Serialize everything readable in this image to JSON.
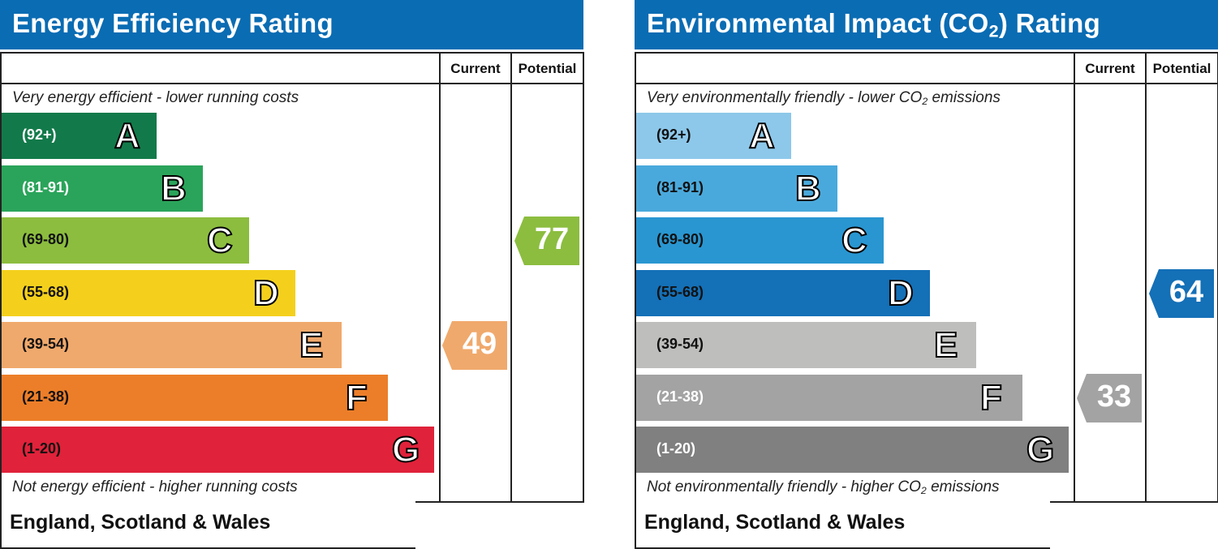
{
  "chart_data": [
    {
      "type": "bar",
      "id": "energy",
      "title": "Energy Efficiency Rating",
      "columns": [
        "Current",
        "Potential"
      ],
      "top_note": "Very energy efficient - lower running costs",
      "bottom_note": "Not energy efficient - higher running costs",
      "footer": "England, Scotland & Wales",
      "bands": [
        {
          "letter": "A",
          "range": "(92+)",
          "color": "#127a4a",
          "text_color": "#ffffff"
        },
        {
          "letter": "B",
          "range": "(81-91)",
          "color": "#2aa45a",
          "text_color": "#ffffff"
        },
        {
          "letter": "C",
          "range": "(69-80)",
          "color": "#8cbd3f",
          "text_color": "#111111"
        },
        {
          "letter": "D",
          "range": "(55-68)",
          "color": "#f4d01d",
          "text_color": "#111111"
        },
        {
          "letter": "E",
          "range": "(39-54)",
          "color": "#f0a96c",
          "text_color": "#111111"
        },
        {
          "letter": "F",
          "range": "(21-38)",
          "color": "#ec7e29",
          "text_color": "#111111"
        },
        {
          "letter": "G",
          "range": "(1-20)",
          "color": "#e0223a",
          "text_color": "#111111"
        }
      ],
      "ratings": {
        "current": {
          "value": 49,
          "band": "E",
          "color": "#f0a96c"
        },
        "potential": {
          "value": 77,
          "band": "C",
          "color": "#8cbd3f"
        }
      }
    },
    {
      "type": "bar",
      "id": "environmental",
      "title_parts": [
        "Environmental Impact (CO",
        "2",
        ") Rating"
      ],
      "columns": [
        "Current",
        "Potential"
      ],
      "top_note_parts": [
        "Very environmentally friendly - lower CO",
        "2",
        " emissions"
      ],
      "bottom_note_parts": [
        "Not environmentally friendly - higher CO",
        "2",
        " emissions"
      ],
      "footer": "England, Scotland & Wales",
      "bands": [
        {
          "letter": "A",
          "range": "(92+)",
          "color": "#8dc8ea",
          "text_color": "#111111"
        },
        {
          "letter": "B",
          "range": "(81-91)",
          "color": "#4aa9dc",
          "text_color": "#111111"
        },
        {
          "letter": "C",
          "range": "(69-80)",
          "color": "#2996d1",
          "text_color": "#111111"
        },
        {
          "letter": "D",
          "range": "(55-68)",
          "color": "#1470b7",
          "text_color": "#111111"
        },
        {
          "letter": "E",
          "range": "(39-54)",
          "color": "#bebebd",
          "text_color": "#111111"
        },
        {
          "letter": "F",
          "range": "(21-38)",
          "color": "#a3a3a3",
          "text_color": "#ffffff"
        },
        {
          "letter": "G",
          "range": "(1-20)",
          "color": "#808080",
          "text_color": "#ffffff"
        }
      ],
      "ratings": {
        "current": {
          "value": 33,
          "band": "F",
          "color": "#a3a3a3"
        },
        "potential": {
          "value": 64,
          "band": "D",
          "color": "#1470b7"
        }
      }
    }
  ]
}
